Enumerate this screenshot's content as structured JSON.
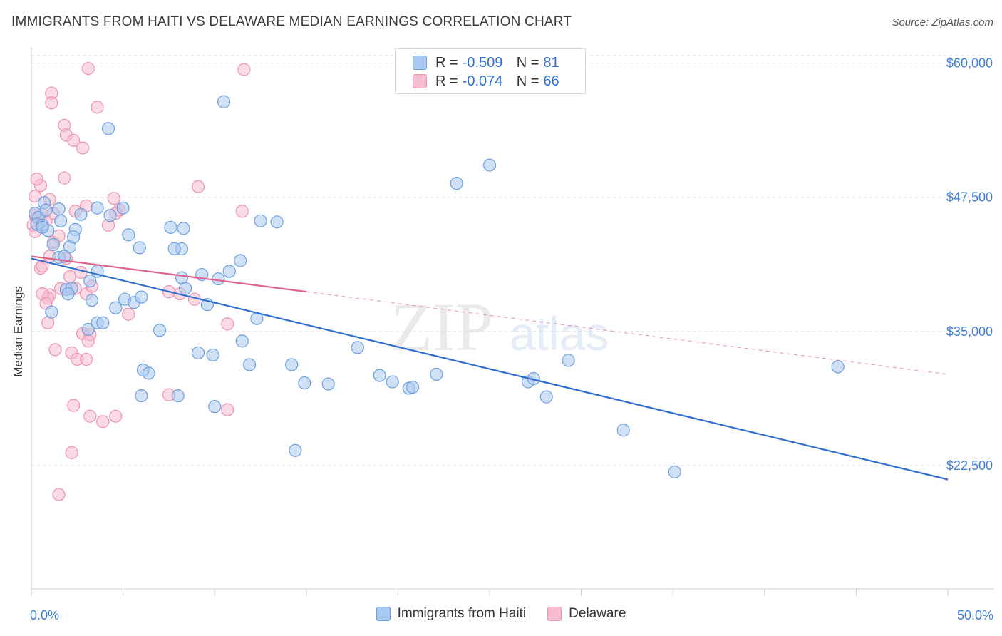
{
  "header": {
    "title": "IMMIGRANTS FROM HAITI VS DELAWARE MEDIAN EARNINGS CORRELATION CHART",
    "source": "Source: ZipAtlas.com"
  },
  "stats": [
    {
      "r_label": "R = ",
      "r_value": "-0.509",
      "n_label": "N = ",
      "n_value": "81"
    },
    {
      "r_label": "R = ",
      "r_value": "-0.074",
      "n_label": "N = ",
      "n_value": "66"
    }
  ],
  "watermark": {
    "zip": "ZIP",
    "atlas": "atlas"
  },
  "colors": {
    "blue_fill": "#a9c8ef",
    "blue_stroke": "#6c9fde",
    "blue_line": "#2f6fcf",
    "pink_fill": "#f6bcd0",
    "pink_stroke": "#ee92b3",
    "pink_line": "#e0628e",
    "axis_label": "#3f7fd4",
    "grid": "#e3e3e3"
  },
  "chart_data": {
    "type": "scatter",
    "title": "IMMIGRANTS FROM HAITI VS DELAWARE MEDIAN EARNINGS CORRELATION CHART",
    "xlabel": "",
    "ylabel": "Median Earnings",
    "xlim": [
      0,
      50
    ],
    "ylim": [
      11000,
      61500
    ],
    "x_tick_labels": [
      "0.0%",
      "50.0%"
    ],
    "y_ticks": [
      22500,
      35000,
      47500,
      60000
    ],
    "y_tick_labels": [
      "$22,500",
      "$35,000",
      "$47,500",
      "$60,000"
    ],
    "legend": [
      "Immigrants from Haiti",
      "Delaware"
    ],
    "series": [
      {
        "name": "Immigrants from Haiti",
        "r": -0.509,
        "n": 81,
        "trend": {
          "x": [
            0,
            50
          ],
          "y": [
            41800,
            21200
          ],
          "dashed_from": null
        },
        "points": [
          [
            0.2,
            46.0
          ],
          [
            0.4,
            45.6
          ],
          [
            0.3,
            45.0
          ],
          [
            0.6,
            44.9
          ],
          [
            0.7,
            47.0
          ],
          [
            0.9,
            44.4
          ],
          [
            0.8,
            46.3
          ],
          [
            1.5,
            46.4
          ],
          [
            1.6,
            45.3
          ],
          [
            1.2,
            43.1
          ],
          [
            2.7,
            45.9
          ],
          [
            2.4,
            44.5
          ],
          [
            2.1,
            42.9
          ],
          [
            2.3,
            43.8
          ],
          [
            3.6,
            46.5
          ],
          [
            4.3,
            45.8
          ],
          [
            5.3,
            44.0
          ],
          [
            5.0,
            46.5
          ],
          [
            0.6,
            44.7
          ],
          [
            1.5,
            41.9
          ],
          [
            1.8,
            42.0
          ],
          [
            1.9,
            38.9
          ],
          [
            2.2,
            39.0
          ],
          [
            2.0,
            38.5
          ],
          [
            3.2,
            39.7
          ],
          [
            3.6,
            40.6
          ],
          [
            1.1,
            36.8
          ],
          [
            3.3,
            37.9
          ],
          [
            3.1,
            35.2
          ],
          [
            3.6,
            35.8
          ],
          [
            3.9,
            35.8
          ],
          [
            4.6,
            37.2
          ],
          [
            5.1,
            38.0
          ],
          [
            5.6,
            37.7
          ],
          [
            6.0,
            38.2
          ],
          [
            7.0,
            35.1
          ],
          [
            8.2,
            40.0
          ],
          [
            8.4,
            39.0
          ],
          [
            9.3,
            40.3
          ],
          [
            10.2,
            39.9
          ],
          [
            10.8,
            40.6
          ],
          [
            11.4,
            41.6
          ],
          [
            9.6,
            37.5
          ],
          [
            12.3,
            36.2
          ],
          [
            11.5,
            34.1
          ],
          [
            4.2,
            53.9
          ],
          [
            10.5,
            56.4
          ],
          [
            12.5,
            45.3
          ],
          [
            13.4,
            45.2
          ],
          [
            7.6,
            44.7
          ],
          [
            8.3,
            44.6
          ],
          [
            8.2,
            42.7
          ],
          [
            7.8,
            42.7
          ],
          [
            5.9,
            42.8
          ],
          [
            6.1,
            31.4
          ],
          [
            6.4,
            31.1
          ],
          [
            9.1,
            33.0
          ],
          [
            9.9,
            32.8
          ],
          [
            11.9,
            31.9
          ],
          [
            14.2,
            31.9
          ],
          [
            14.9,
            30.2
          ],
          [
            16.2,
            30.1
          ],
          [
            17.8,
            33.5
          ],
          [
            19.0,
            30.9
          ],
          [
            19.7,
            30.3
          ],
          [
            20.6,
            29.7
          ],
          [
            20.8,
            29.8
          ],
          [
            22.1,
            31.0
          ],
          [
            23.2,
            48.8
          ],
          [
            25.0,
            50.5
          ],
          [
            27.1,
            30.3
          ],
          [
            27.4,
            30.6
          ],
          [
            28.1,
            28.9
          ],
          [
            29.3,
            32.3
          ],
          [
            32.3,
            25.8
          ],
          [
            35.1,
            21.9
          ],
          [
            44.0,
            31.7
          ],
          [
            6.0,
            29.0
          ],
          [
            8.0,
            29.0
          ],
          [
            10.0,
            28.0
          ],
          [
            14.4,
            23.9
          ]
        ]
      },
      {
        "name": "Delaware",
        "r": -0.074,
        "n": 66,
        "trend": {
          "x": [
            0,
            50
          ],
          "y": [
            42000,
            31000
          ],
          "dashed_from": 15
        },
        "points": [
          [
            0.2,
            47.6
          ],
          [
            0.5,
            48.6
          ],
          [
            0.3,
            49.2
          ],
          [
            1.0,
            47.3
          ],
          [
            1.8,
            49.3
          ],
          [
            1.1,
            57.2
          ],
          [
            1.1,
            56.3
          ],
          [
            1.8,
            54.2
          ],
          [
            1.9,
            53.3
          ],
          [
            2.3,
            52.8
          ],
          [
            2.8,
            52.1
          ],
          [
            3.1,
            59.5
          ],
          [
            3.6,
            55.9
          ],
          [
            4.5,
            47.4
          ],
          [
            4.8,
            46.3
          ],
          [
            4.6,
            46.0
          ],
          [
            4.2,
            44.9
          ],
          [
            3.0,
            46.7
          ],
          [
            2.4,
            46.2
          ],
          [
            1.2,
            46.0
          ],
          [
            0.2,
            45.8
          ],
          [
            0.3,
            45.6
          ],
          [
            0.6,
            45.9
          ],
          [
            0.8,
            45.3
          ],
          [
            0.1,
            44.9
          ],
          [
            0.2,
            44.3
          ],
          [
            1.2,
            43.3
          ],
          [
            1.5,
            43.9
          ],
          [
            1.0,
            42.0
          ],
          [
            1.9,
            41.8
          ],
          [
            0.5,
            40.9
          ],
          [
            0.6,
            41.1
          ],
          [
            2.1,
            40.1
          ],
          [
            2.7,
            40.5
          ],
          [
            1.6,
            39.0
          ],
          [
            1.0,
            38.4
          ],
          [
            0.9,
            38.1
          ],
          [
            0.6,
            38.5
          ],
          [
            0.8,
            37.6
          ],
          [
            0.9,
            35.8
          ],
          [
            2.4,
            39.0
          ],
          [
            3.0,
            38.5
          ],
          [
            3.3,
            39.2
          ],
          [
            2.8,
            34.8
          ],
          [
            3.2,
            34.7
          ],
          [
            3.1,
            34.1
          ],
          [
            1.3,
            33.3
          ],
          [
            2.2,
            33.0
          ],
          [
            2.5,
            32.4
          ],
          [
            3.0,
            32.4
          ],
          [
            5.3,
            36.6
          ],
          [
            7.5,
            38.7
          ],
          [
            8.1,
            38.5
          ],
          [
            8.9,
            38.0
          ],
          [
            10.7,
            35.7
          ],
          [
            10.7,
            27.7
          ],
          [
            2.3,
            28.1
          ],
          [
            3.2,
            27.1
          ],
          [
            3.9,
            26.6
          ],
          [
            4.6,
            27.1
          ],
          [
            2.2,
            23.7
          ],
          [
            1.5,
            19.8
          ],
          [
            7.5,
            29.1
          ],
          [
            9.1,
            48.5
          ],
          [
            11.5,
            46.2
          ],
          [
            11.6,
            59.4
          ]
        ]
      }
    ]
  }
}
